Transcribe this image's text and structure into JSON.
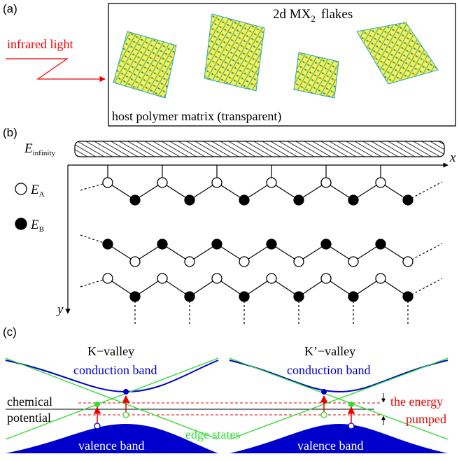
{
  "panel_a": {
    "label": "(a)",
    "light_label": "infrared light",
    "flakes_title_main": "2d MX",
    "flakes_title_sub": "2",
    "flakes_title_tail": "flakes",
    "matrix_label": "host polymer matrix (transparent)"
  },
  "panel_b": {
    "label": "(b)",
    "e_inf_main": "E",
    "e_inf_sub": "infinity",
    "x_label": "x",
    "y_label": "y",
    "legend_a_main": "E",
    "legend_a_sub": "A",
    "legend_b_main": "E",
    "legend_b_sub": "B"
  },
  "panel_c": {
    "label": "(c)",
    "k_valley": "K−valley",
    "kp_valley": "K’−valley",
    "conduction_band": "conduction band",
    "valence_band": "valence band",
    "chemical_line1": "chemical",
    "chemical_line2": "potential",
    "edge_states": "edge states",
    "energy_line1": "the energy",
    "energy_line2": "pumped"
  },
  "colors": {
    "band_blue": "#0000cc",
    "edge_green": "#33dd33",
    "arrow_red": "#ee0000",
    "flake_yellow": "#e8e820",
    "flake_cyan": "#22a8c8"
  }
}
